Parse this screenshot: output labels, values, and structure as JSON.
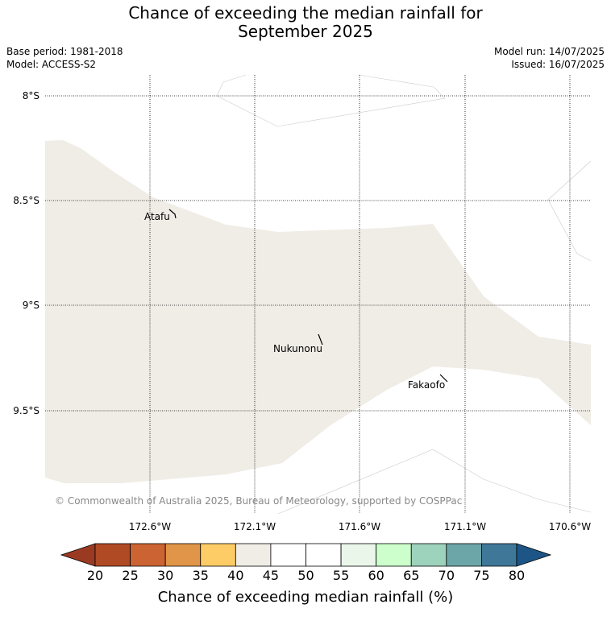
{
  "title": {
    "line1": "Chance of exceeding the median rainfall for",
    "line2": "September 2025"
  },
  "meta": {
    "base_period": "Base period: 1981-2018",
    "model": "Model: ACCESS-S2",
    "model_run": "Model run: 14/07/2025",
    "issued": "Issued: 16/07/2025"
  },
  "map": {
    "lat_labels": [
      "8°S",
      "8.5°S",
      "9°S",
      "9.5°S"
    ],
    "lon_labels": [
      "172.6°W",
      "172.1°W",
      "171.6°W",
      "171.1°W",
      "170.6°W"
    ],
    "places": [
      {
        "name": "Atafu"
      },
      {
        "name": "Nukunonu"
      },
      {
        "name": "Fakaofo"
      }
    ],
    "copyright": "© Commonwealth of Australia 2025, Bureau of Meteorology, supported by COSPPac",
    "zone_color": "#f0ece6"
  },
  "colorbar": {
    "title": "Chance of exceeding median rainfall (%)",
    "ticks": [
      "20",
      "25",
      "30",
      "35",
      "40",
      "45",
      "50",
      "55",
      "60",
      "65",
      "70",
      "75",
      "80"
    ],
    "low_extend_color": "#9b3a22",
    "high_extend_color": "#1d5686",
    "colors": [
      "#b04a24",
      "#cc6332",
      "#e19548",
      "#fdcc66",
      "#f0ece6",
      "#ffffff",
      "#ffffff",
      "#eaf6ea",
      "#ccffcc",
      "#9dd2bc",
      "#6da6a8",
      "#3f7799"
    ]
  }
}
